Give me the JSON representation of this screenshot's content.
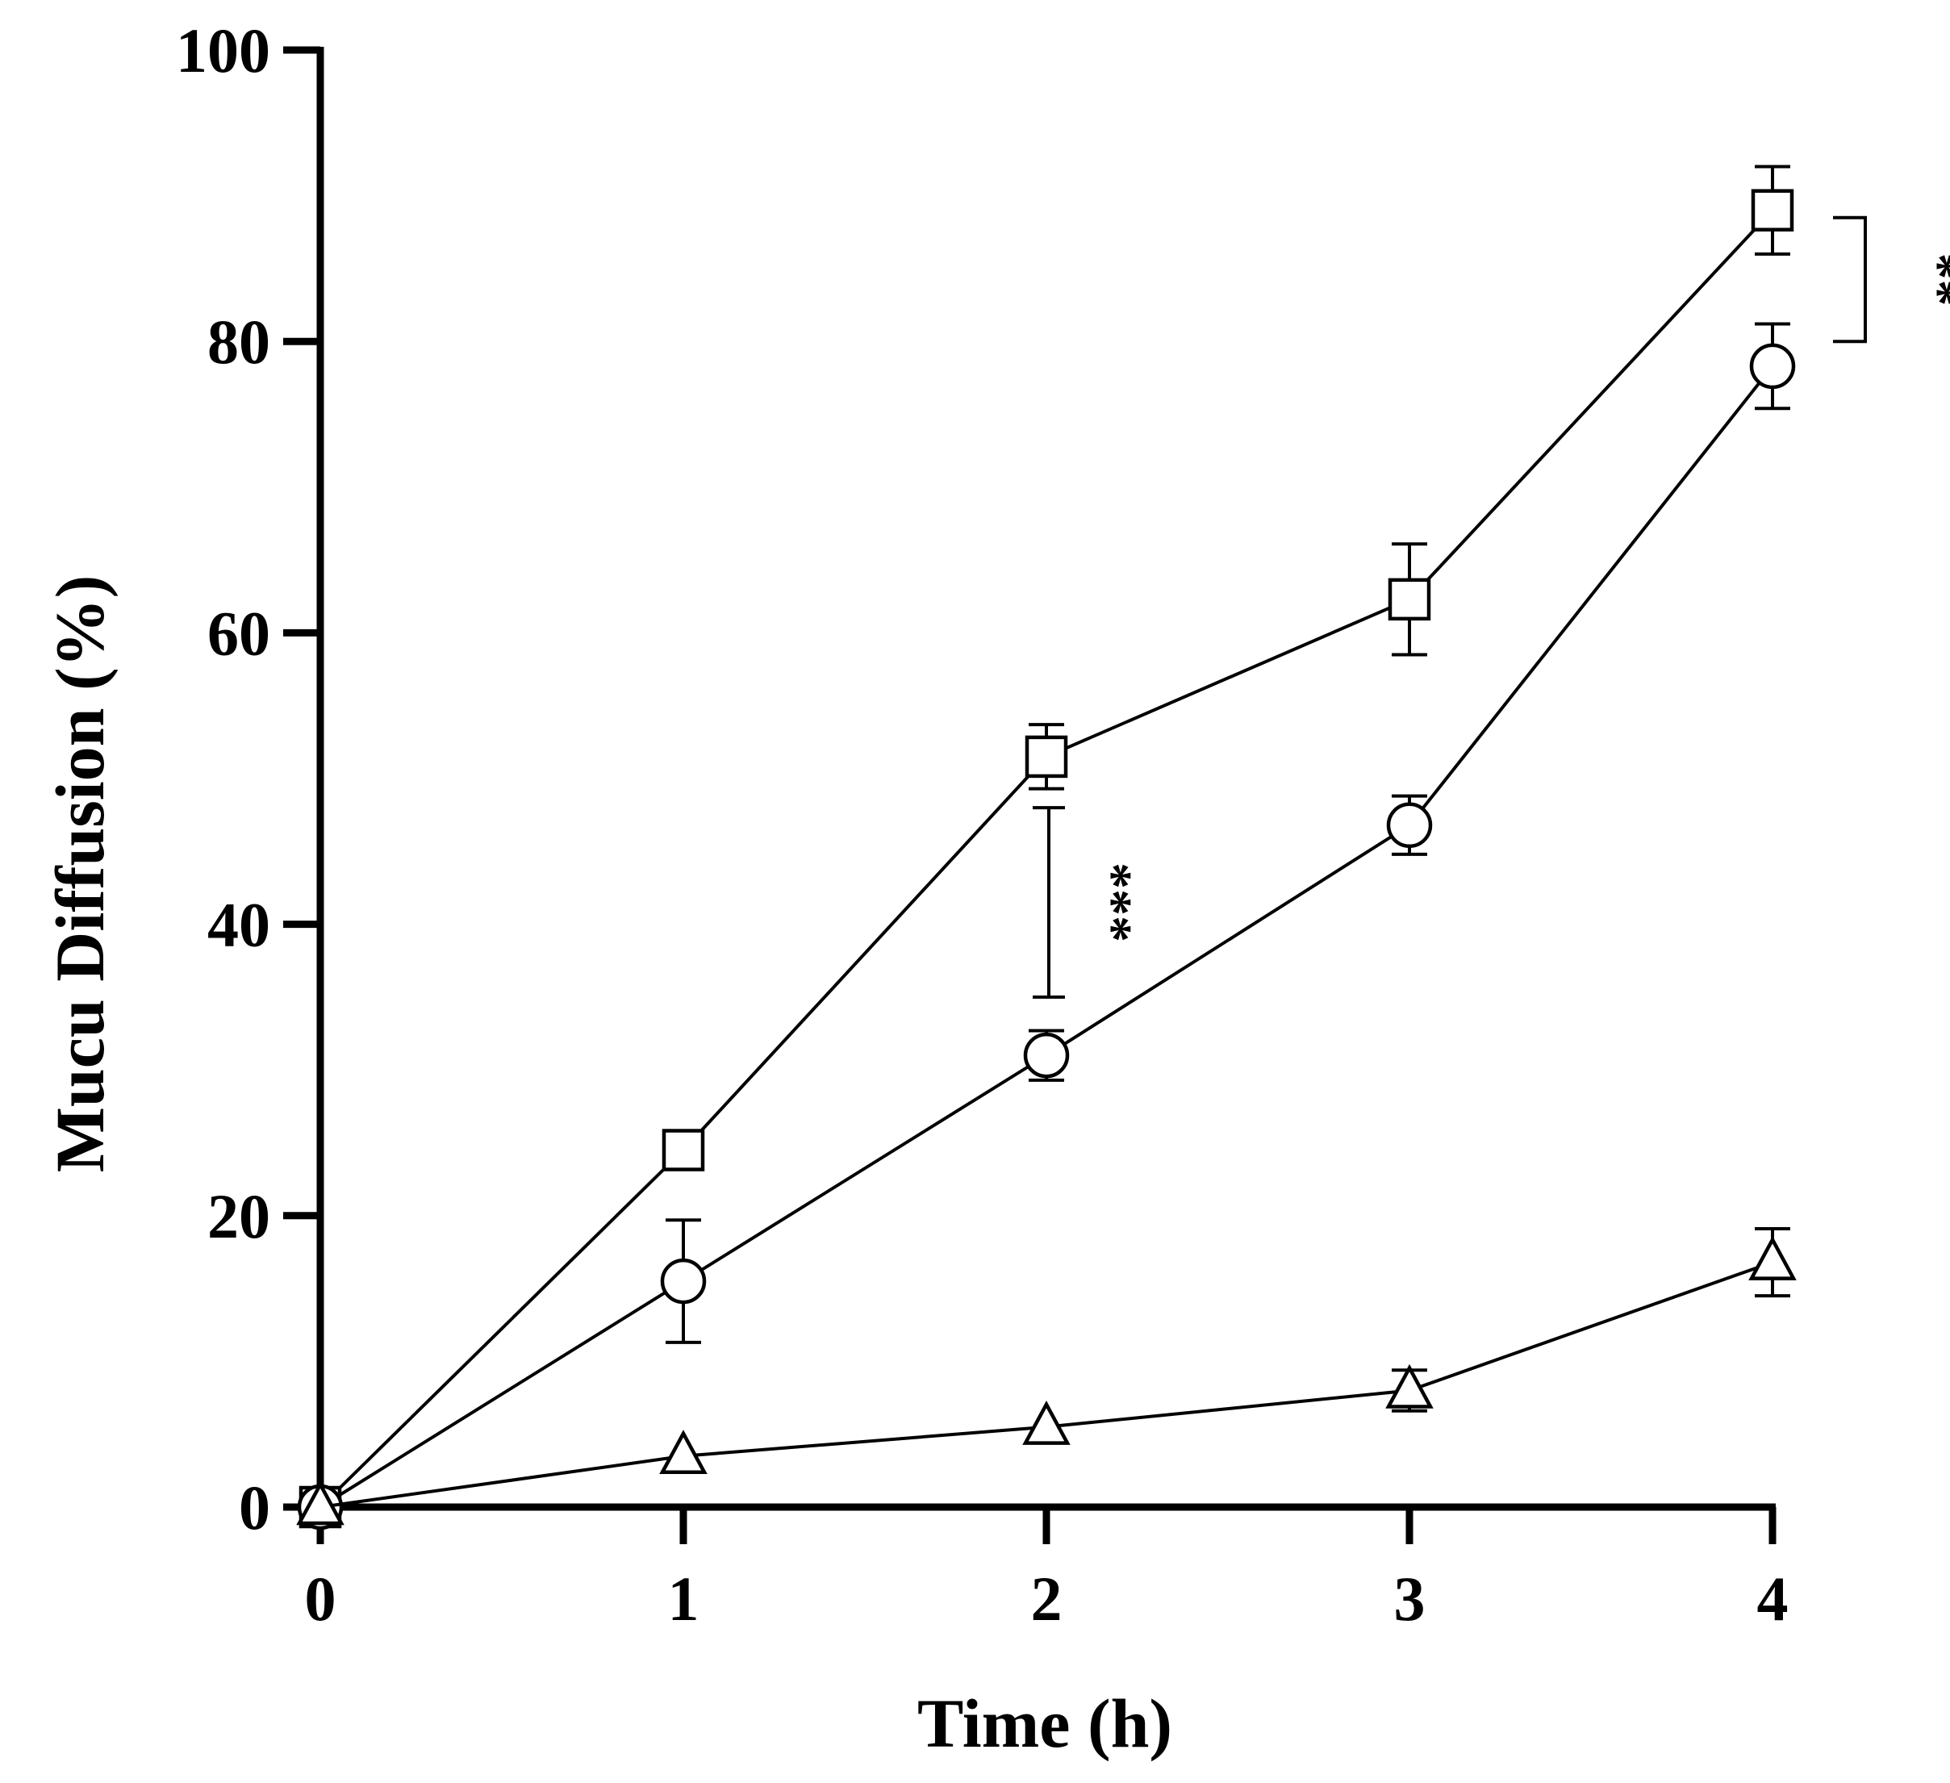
{
  "chart_data": {
    "type": "line",
    "title": "",
    "xlabel": "Time (h)",
    "ylabel": "Mucu Diffusion (%)",
    "xlim": [
      0,
      4
    ],
    "ylim": [
      0,
      100
    ],
    "x_ticks": [
      "0",
      "1",
      "2",
      "3",
      "4"
    ],
    "y_ticks": [
      "0",
      "20",
      "40",
      "60",
      "80",
      "100"
    ],
    "x": [
      0,
      1,
      2,
      3,
      4
    ],
    "series": [
      {
        "name": "square",
        "marker": "square",
        "values": [
          0,
          24.5,
          51.5,
          62.3,
          89.0
        ],
        "errors": [
          0,
          0,
          2.2,
          3.8,
          3.0
        ]
      },
      {
        "name": "circle",
        "marker": "circle",
        "values": [
          0,
          15.5,
          31.0,
          46.8,
          78.3
        ],
        "errors": [
          0,
          4.2,
          1.7,
          2.0,
          2.9
        ]
      },
      {
        "name": "triangle",
        "marker": "triangle",
        "values": [
          0,
          3.5,
          5.5,
          8.0,
          16.8
        ],
        "errors": [
          0,
          0,
          0,
          1.4,
          2.3
        ]
      }
    ],
    "annotations": [
      {
        "text": "***",
        "x": 2,
        "y_range": [
          35,
          48
        ]
      },
      {
        "text": "**",
        "x": 4,
        "y_range": [
          80,
          88.5
        ]
      }
    ]
  }
}
